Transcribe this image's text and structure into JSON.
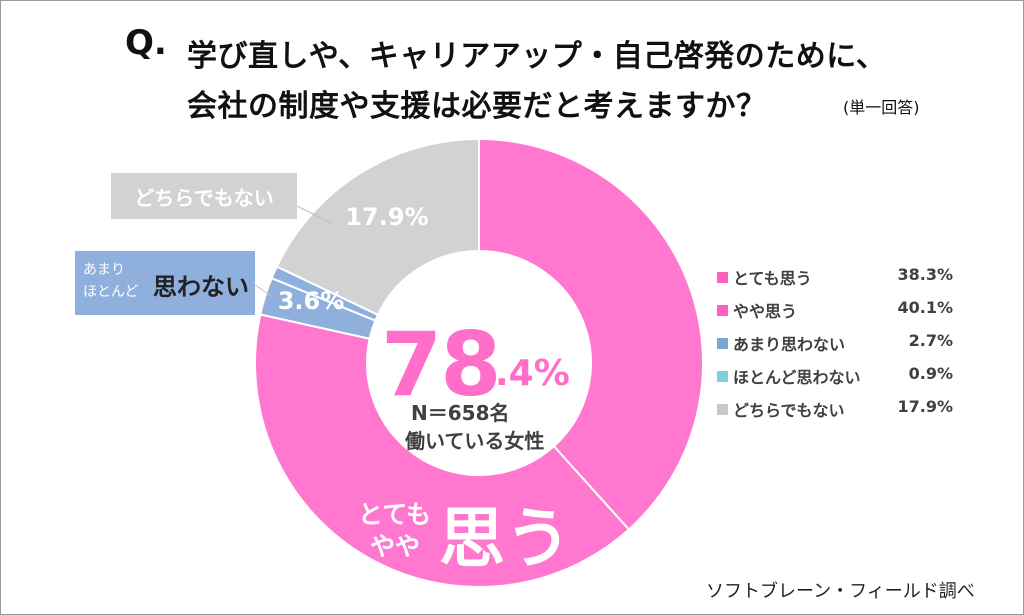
{
  "question": {
    "label": "Q.",
    "line1": "学び直しや、キャリアアップ・自己啓発のために、",
    "line2": "会社の制度や支援は必要だと考えますか？",
    "note": "(単一回答)"
  },
  "callouts": {
    "neither": "どちらでもない",
    "not_small_1": "あまり",
    "not_small_2": "ほとんど",
    "not_big": "思わない"
  },
  "center": {
    "big": "78",
    "small": ".4%",
    "n": "N＝658名",
    "desc": "働いている女性"
  },
  "agree_label": {
    "small1": "とても",
    "small2": "やや",
    "big": "思う"
  },
  "source": "ソフトブレーン・フィールド調べ",
  "chart_data": {
    "type": "pie",
    "title": "学び直しや、キャリアアップ・自己啓発のために、会社の制度や支援は必要だと考えますか？",
    "donut": true,
    "legend_position": "right",
    "series": [
      {
        "name": "とても思う",
        "value": 38.3,
        "color": "#ff77cf"
      },
      {
        "name": "やや思う",
        "value": 40.1,
        "color": "#ff77cf"
      },
      {
        "name": "あまり思わない",
        "value": 2.7,
        "color": "#8fb0dd"
      },
      {
        "name": "ほとんど思わない",
        "value": 0.9,
        "color": "#8fb0dd"
      },
      {
        "name": "どちらでもない",
        "value": 17.9,
        "color": "#d2d2d2"
      }
    ],
    "legend": [
      {
        "label": "とても思う",
        "value": "38.3%",
        "color": "#ff60c0"
      },
      {
        "label": "やや思う",
        "value": "40.1%",
        "color": "#ff60c0"
      },
      {
        "label": "あまり思わない",
        "value": "2.7%",
        "color": "#7aa6d6"
      },
      {
        "label": "ほとんど思わない",
        "value": "0.9%",
        "color": "#7fd0dc"
      },
      {
        "label": "どちらでもない",
        "value": "17.9%",
        "color": "#c8c8c8"
      }
    ],
    "slice_labels": [
      {
        "text": "3.6%",
        "value": 3.6
      },
      {
        "text": "17.9%",
        "value": 17.9
      }
    ]
  }
}
